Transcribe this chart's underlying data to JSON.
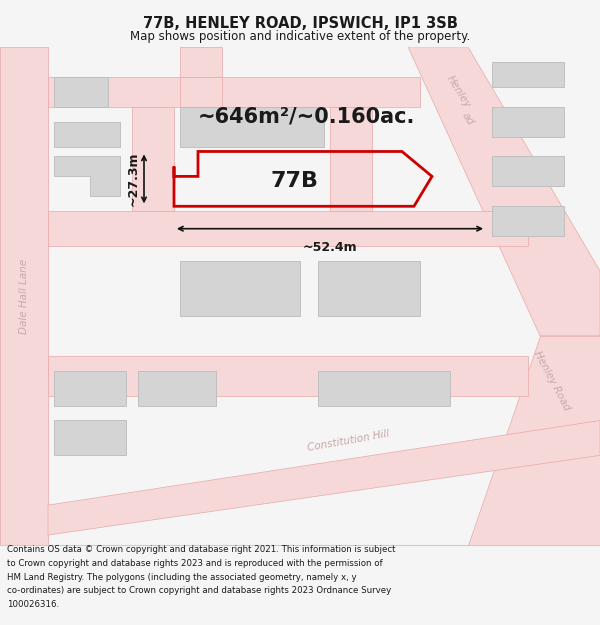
{
  "title_line1": "77B, HENLEY ROAD, IPSWICH, IP1 3SB",
  "title_line2": "Map shows position and indicative extent of the property.",
  "area_text": "~646m²/~0.160ac.",
  "label_77b": "77B",
  "dim_width": "~52.4m",
  "dim_height": "~27.3m",
  "footer_lines": [
    "Contains OS data © Crown copyright and database right 2021. This information is subject",
    "to Crown copyright and database rights 2023 and is reproduced with the permission of",
    "HM Land Registry. The polygons (including the associated geometry, namely x, y",
    "co-ordinates) are subject to Crown copyright and database rights 2023 Ordnance Survey",
    "100026316."
  ],
  "bg_color": "#f5f5f5",
  "map_bg": "#ffffff",
  "road_fill": "#f7d8d8",
  "road_line": "#e8a8a8",
  "building_fill": "#d4d4d4",
  "building_line": "#bbbbbb",
  "highlight_color": "#cc0000",
  "text_dark": "#1a1a1a",
  "dim_color": "#111111",
  "road_label": "#c8a8a8",
  "label_font": 7.5,
  "title_font1": 10.5,
  "title_font2": 8.5,
  "area_font": 15,
  "prop_label_font": 16,
  "dim_font": 9,
  "footer_font": 6.2
}
